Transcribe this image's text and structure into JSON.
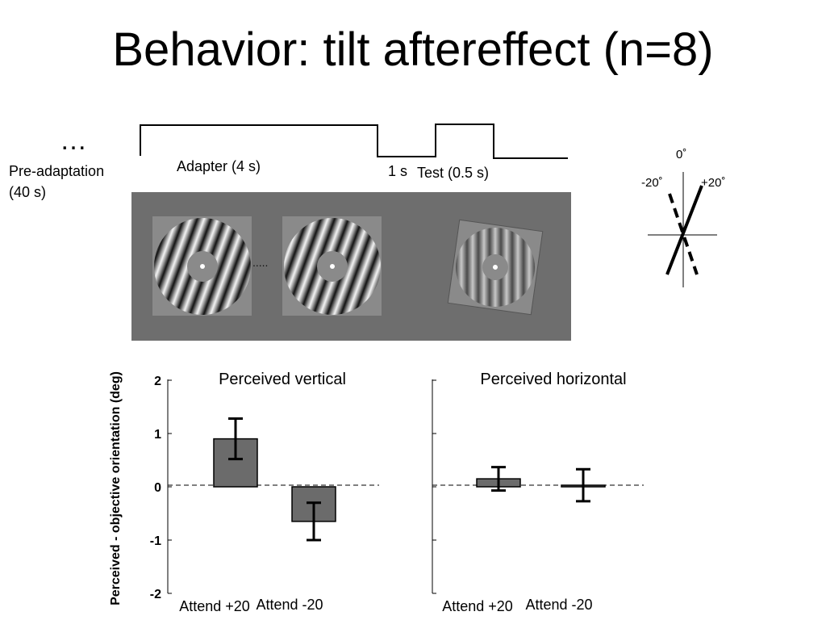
{
  "slide": {
    "title": "Behavior: tilt aftereffect (n=8)"
  },
  "timeline": {
    "ellipsis": "…",
    "pre_adaptation_line1": "Pre-adaptation",
    "pre_adaptation_line2": "(40 s)",
    "adapter_label": "Adapter (4 s)",
    "gap_label": "1 s",
    "test_label": "Test (0.5 s)"
  },
  "stimuli": {
    "dots": ".....",
    "adapter_orientation_deg": 20,
    "test_orientation_deg": 0
  },
  "orientation_key": {
    "zero_label": "0˚",
    "minus_label": "-20˚",
    "plus_label": "+20˚"
  },
  "colors": {
    "bar_fill": "#6b6b6b",
    "panel_gray": "#6e6e6e"
  },
  "chart_data": [
    {
      "type": "bar",
      "title": "Perceived vertical",
      "ylabel": "Perceived - objective orientation (deg)",
      "categories": [
        "Attend +20",
        "Attend -20"
      ],
      "values": [
        0.9,
        -0.65
      ],
      "errors": [
        0.38,
        0.35
      ],
      "ylim": [
        -2,
        2
      ],
      "yticks": [
        "2",
        "1",
        "0",
        "-1",
        "-2"
      ],
      "zero_line": "dashed"
    },
    {
      "type": "bar",
      "title": "Perceived horizontal",
      "categories": [
        "Attend +20",
        "Attend -20"
      ],
      "values": [
        0.15,
        0.03
      ],
      "errors": [
        0.22,
        0.3
      ],
      "ylim": [
        -2,
        2
      ],
      "zero_line": "dashed"
    }
  ]
}
